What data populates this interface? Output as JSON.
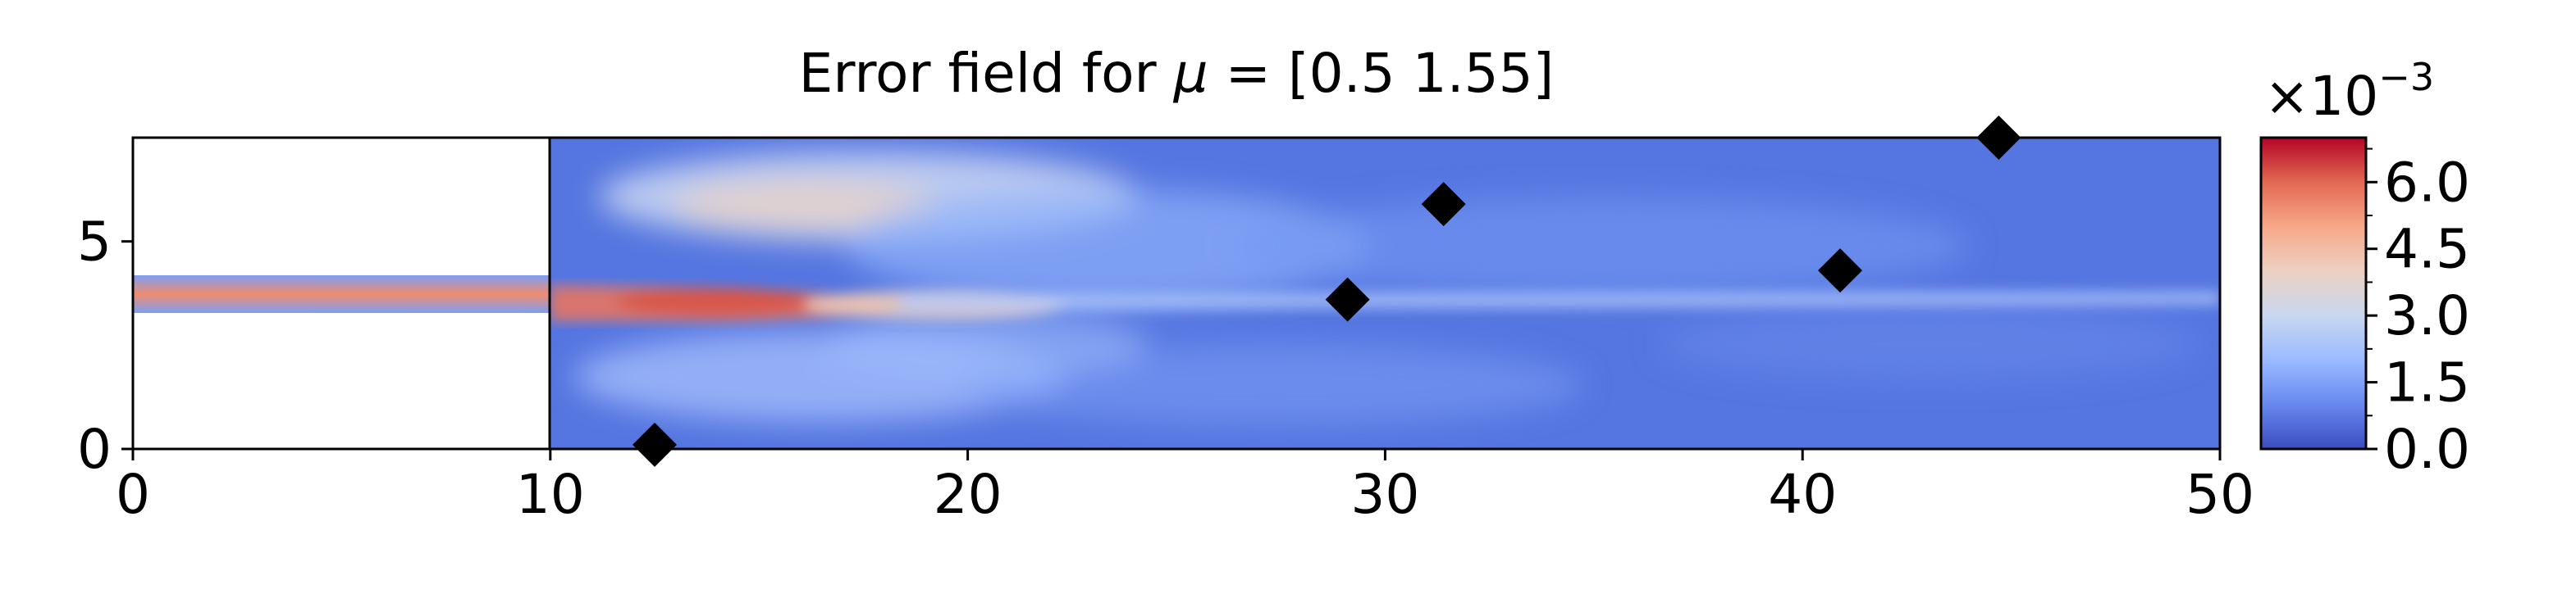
{
  "chart_data": {
    "type": "heatmap",
    "title_prefix": "Error field for ",
    "title_symbol": "μ",
    "title_suffix": " = [0.5  1.55]",
    "x_range": [
      0,
      50
    ],
    "y_range": [
      0,
      7.5
    ],
    "x_ticks": [
      "0",
      "10",
      "20",
      "30",
      "40",
      "50"
    ],
    "y_ticks": [
      "0",
      "5"
    ],
    "colorbar": {
      "colormap": "coolwarm",
      "range": [
        0.0,
        7.0
      ],
      "ticks": [
        "0.0",
        "1.5",
        "3.0",
        "4.5",
        "6.0"
      ],
      "multiplier_base": "×10",
      "multiplier_exp": "−3",
      "colors": [
        "#3b4cc0",
        "#6788ee",
        "#9abbff",
        "#c9d7f0",
        "#edd1c2",
        "#f7a889",
        "#e26952",
        "#b40426"
      ]
    },
    "domain": {
      "inlet_channel": {
        "x": [
          0,
          10
        ],
        "y": [
          3.3,
          4.2
        ]
      },
      "chamber": {
        "x": [
          10,
          50
        ],
        "y": [
          0,
          7.5
        ]
      }
    },
    "sensor_points": [
      {
        "x": 12.5,
        "y": 0.1
      },
      {
        "x": 29.1,
        "y": 3.6
      },
      {
        "x": 31.4,
        "y": 5.9
      },
      {
        "x": 40.9,
        "y": 4.3
      },
      {
        "x": 44.7,
        "y": 7.5
      }
    ]
  }
}
